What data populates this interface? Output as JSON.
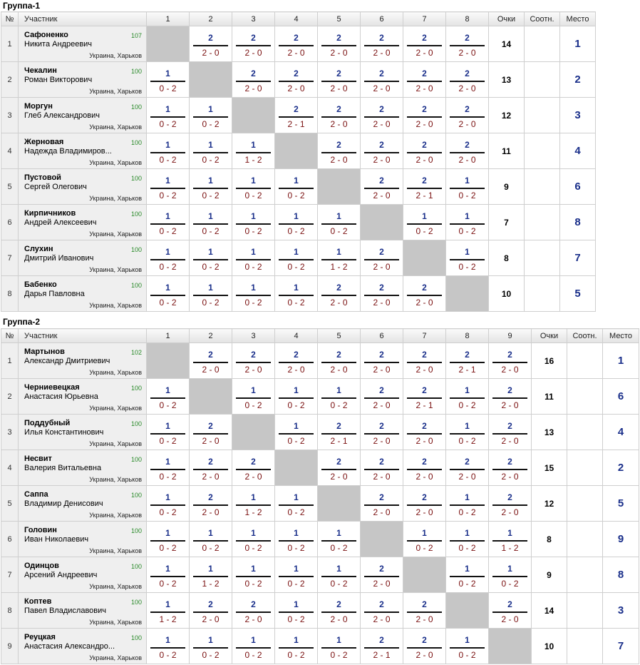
{
  "columns": {
    "num": "№",
    "player": "Участник",
    "points": "Очки",
    "ratio": "Соотн.",
    "place": "Место"
  },
  "groups": [
    {
      "title": "Группа-1",
      "size": 8,
      "rows": [
        {
          "n": "1",
          "surname": "Сафоненко",
          "name": "Никита Андреевич",
          "rating": "107",
          "city": "Украина, Харьков",
          "points": "14",
          "ratio": "",
          "place": "1",
          "cells": [
            null,
            [
              "2",
              "2 - 0"
            ],
            [
              "2",
              "2 - 0"
            ],
            [
              "2",
              "2 - 0"
            ],
            [
              "2",
              "2 - 0"
            ],
            [
              "2",
              "2 - 0"
            ],
            [
              "2",
              "2 - 0"
            ],
            [
              "2",
              "2 - 0"
            ]
          ]
        },
        {
          "n": "2",
          "surname": "Чекалин",
          "name": "Роман Викторович",
          "rating": "100",
          "city": "Украина, Харьков",
          "points": "13",
          "ratio": "",
          "place": "2",
          "cells": [
            [
              "1",
              "0 - 2"
            ],
            null,
            [
              "2",
              "2 - 0"
            ],
            [
              "2",
              "2 - 0"
            ],
            [
              "2",
              "2 - 0"
            ],
            [
              "2",
              "2 - 0"
            ],
            [
              "2",
              "2 - 0"
            ],
            [
              "2",
              "2 - 0"
            ]
          ]
        },
        {
          "n": "3",
          "surname": "Моргун",
          "name": "Глеб Александрович",
          "rating": "100",
          "city": "Украина, Харьков",
          "points": "12",
          "ratio": "",
          "place": "3",
          "cells": [
            [
              "1",
              "0 - 2"
            ],
            [
              "1",
              "0 - 2"
            ],
            null,
            [
              "2",
              "2 - 1"
            ],
            [
              "2",
              "2 - 0"
            ],
            [
              "2",
              "2 - 0"
            ],
            [
              "2",
              "2 - 0"
            ],
            [
              "2",
              "2 - 0"
            ]
          ]
        },
        {
          "n": "4",
          "surname": "Жерновая",
          "name": "Надежда Владимиров...",
          "rating": "100",
          "city": "Украина, Харьков",
          "points": "11",
          "ratio": "",
          "place": "4",
          "cells": [
            [
              "1",
              "0 - 2"
            ],
            [
              "1",
              "0 - 2"
            ],
            [
              "1",
              "1 - 2"
            ],
            null,
            [
              "2",
              "2 - 0"
            ],
            [
              "2",
              "2 - 0"
            ],
            [
              "2",
              "2 - 0"
            ],
            [
              "2",
              "2 - 0"
            ]
          ]
        },
        {
          "n": "5",
          "surname": "Пустовой",
          "name": "Сергей Олегович",
          "rating": "100",
          "city": "Украина, Харьков",
          "points": "9",
          "ratio": "",
          "place": "6",
          "cells": [
            [
              "1",
              "0 - 2"
            ],
            [
              "1",
              "0 - 2"
            ],
            [
              "1",
              "0 - 2"
            ],
            [
              "1",
              "0 - 2"
            ],
            null,
            [
              "2",
              "2 - 0"
            ],
            [
              "2",
              "2 - 1"
            ],
            [
              "1",
              "0 - 2"
            ]
          ]
        },
        {
          "n": "6",
          "surname": "Кирпичников",
          "name": "Андрей Алексеевич",
          "rating": "100",
          "city": "Украина, Харьков",
          "points": "7",
          "ratio": "",
          "place": "8",
          "cells": [
            [
              "1",
              "0 - 2"
            ],
            [
              "1",
              "0 - 2"
            ],
            [
              "1",
              "0 - 2"
            ],
            [
              "1",
              "0 - 2"
            ],
            [
              "1",
              "0 - 2"
            ],
            null,
            [
              "1",
              "0 - 2"
            ],
            [
              "1",
              "0 - 2"
            ]
          ]
        },
        {
          "n": "7",
          "surname": "Слухин",
          "name": "Дмитрий Иванович",
          "rating": "100",
          "city": "Украина, Харьков",
          "points": "8",
          "ratio": "",
          "place": "7",
          "cells": [
            [
              "1",
              "0 - 2"
            ],
            [
              "1",
              "0 - 2"
            ],
            [
              "1",
              "0 - 2"
            ],
            [
              "1",
              "0 - 2"
            ],
            [
              "1",
              "1 - 2"
            ],
            [
              "2",
              "2 - 0"
            ],
            null,
            [
              "1",
              "0 - 2"
            ]
          ]
        },
        {
          "n": "8",
          "surname": "Бабенко",
          "name": "Дарья Павловна",
          "rating": "100",
          "city": "Украина, Харьков",
          "points": "10",
          "ratio": "",
          "place": "5",
          "cells": [
            [
              "1",
              "0 - 2"
            ],
            [
              "1",
              "0 - 2"
            ],
            [
              "1",
              "0 - 2"
            ],
            [
              "1",
              "0 - 2"
            ],
            [
              "2",
              "2 - 0"
            ],
            [
              "2",
              "2 - 0"
            ],
            [
              "2",
              "2 - 0"
            ],
            null
          ]
        }
      ]
    },
    {
      "title": "Группа-2",
      "size": 9,
      "rows": [
        {
          "n": "1",
          "surname": "Мартынов",
          "name": "Александр Дмитриевич",
          "rating": "102",
          "city": "Украина, Харьков",
          "points": "16",
          "ratio": "",
          "place": "1",
          "cells": [
            null,
            [
              "2",
              "2 - 0"
            ],
            [
              "2",
              "2 - 0"
            ],
            [
              "2",
              "2 - 0"
            ],
            [
              "2",
              "2 - 0"
            ],
            [
              "2",
              "2 - 0"
            ],
            [
              "2",
              "2 - 0"
            ],
            [
              "2",
              "2 - 1"
            ],
            [
              "2",
              "2 - 0"
            ]
          ]
        },
        {
          "n": "2",
          "surname": "Черниевецкая",
          "name": "Анастасия Юрьевна",
          "rating": "100",
          "city": "Украина, Харьков",
          "points": "11",
          "ratio": "",
          "place": "6",
          "cells": [
            [
              "1",
              "0 - 2"
            ],
            null,
            [
              "1",
              "0 - 2"
            ],
            [
              "1",
              "0 - 2"
            ],
            [
              "1",
              "0 - 2"
            ],
            [
              "2",
              "2 - 0"
            ],
            [
              "2",
              "2 - 1"
            ],
            [
              "1",
              "0 - 2"
            ],
            [
              "2",
              "2 - 0"
            ]
          ]
        },
        {
          "n": "3",
          "surname": "Поддубный",
          "name": "Илья Константинович",
          "rating": "100",
          "city": "Украина, Харьков",
          "points": "13",
          "ratio": "",
          "place": "4",
          "cells": [
            [
              "1",
              "0 - 2"
            ],
            [
              "2",
              "2 - 0"
            ],
            null,
            [
              "1",
              "0 - 2"
            ],
            [
              "2",
              "2 - 1"
            ],
            [
              "2",
              "2 - 0"
            ],
            [
              "2",
              "2 - 0"
            ],
            [
              "1",
              "0 - 2"
            ],
            [
              "2",
              "2 - 0"
            ]
          ]
        },
        {
          "n": "4",
          "surname": "Несвит",
          "name": "Валерия Витальевна",
          "rating": "100",
          "city": "Украина, Харьков",
          "points": "15",
          "ratio": "",
          "place": "2",
          "cells": [
            [
              "1",
              "0 - 2"
            ],
            [
              "2",
              "2 - 0"
            ],
            [
              "2",
              "2 - 0"
            ],
            null,
            [
              "2",
              "2 - 0"
            ],
            [
              "2",
              "2 - 0"
            ],
            [
              "2",
              "2 - 0"
            ],
            [
              "2",
              "2 - 0"
            ],
            [
              "2",
              "2 - 0"
            ]
          ]
        },
        {
          "n": "5",
          "surname": "Саппа",
          "name": "Владимир Денисович",
          "rating": "100",
          "city": "Украина, Харьков",
          "points": "12",
          "ratio": "",
          "place": "5",
          "cells": [
            [
              "1",
              "0 - 2"
            ],
            [
              "2",
              "2 - 0"
            ],
            [
              "1",
              "1 - 2"
            ],
            [
              "1",
              "0 - 2"
            ],
            null,
            [
              "2",
              "2 - 0"
            ],
            [
              "2",
              "2 - 0"
            ],
            [
              "1",
              "0 - 2"
            ],
            [
              "2",
              "2 - 0"
            ]
          ]
        },
        {
          "n": "6",
          "surname": "Головин",
          "name": "Иван Николаевич",
          "rating": "100",
          "city": "Украина, Харьков",
          "points": "8",
          "ratio": "",
          "place": "9",
          "cells": [
            [
              "1",
              "0 - 2"
            ],
            [
              "1",
              "0 - 2"
            ],
            [
              "1",
              "0 - 2"
            ],
            [
              "1",
              "0 - 2"
            ],
            [
              "1",
              "0 - 2"
            ],
            null,
            [
              "1",
              "0 - 2"
            ],
            [
              "1",
              "0 - 2"
            ],
            [
              "1",
              "1 - 2"
            ]
          ]
        },
        {
          "n": "7",
          "surname": "Одинцов",
          "name": "Арсений Андреевич",
          "rating": "100",
          "city": "Украина, Харьков",
          "points": "9",
          "ratio": "",
          "place": "8",
          "cells": [
            [
              "1",
              "0 - 2"
            ],
            [
              "1",
              "1 - 2"
            ],
            [
              "1",
              "0 - 2"
            ],
            [
              "1",
              "0 - 2"
            ],
            [
              "1",
              "0 - 2"
            ],
            [
              "2",
              "2 - 0"
            ],
            null,
            [
              "1",
              "0 - 2"
            ],
            [
              "1",
              "0 - 2"
            ]
          ]
        },
        {
          "n": "8",
          "surname": "Коптев",
          "name": "Павел Владиславович",
          "rating": "100",
          "city": "Украина, Харьков",
          "points": "14",
          "ratio": "",
          "place": "3",
          "cells": [
            [
              "1",
              "1 - 2"
            ],
            [
              "2",
              "2 - 0"
            ],
            [
              "2",
              "2 - 0"
            ],
            [
              "1",
              "0 - 2"
            ],
            [
              "2",
              "2 - 0"
            ],
            [
              "2",
              "2 - 0"
            ],
            [
              "2",
              "2 - 0"
            ],
            null,
            [
              "2",
              "2 - 0"
            ]
          ]
        },
        {
          "n": "9",
          "surname": "Реуцкая",
          "name": "Анастасия Александро...",
          "rating": "100",
          "city": "Украина, Харьков",
          "points": "10",
          "ratio": "",
          "place": "7",
          "cells": [
            [
              "1",
              "0 - 2"
            ],
            [
              "1",
              "0 - 2"
            ],
            [
              "1",
              "0 - 2"
            ],
            [
              "1",
              "0 - 2"
            ],
            [
              "1",
              "0 - 2"
            ],
            [
              "2",
              "2 - 1"
            ],
            [
              "2",
              "2 - 0"
            ],
            [
              "1",
              "0 - 2"
            ],
            null
          ]
        }
      ]
    }
  ]
}
